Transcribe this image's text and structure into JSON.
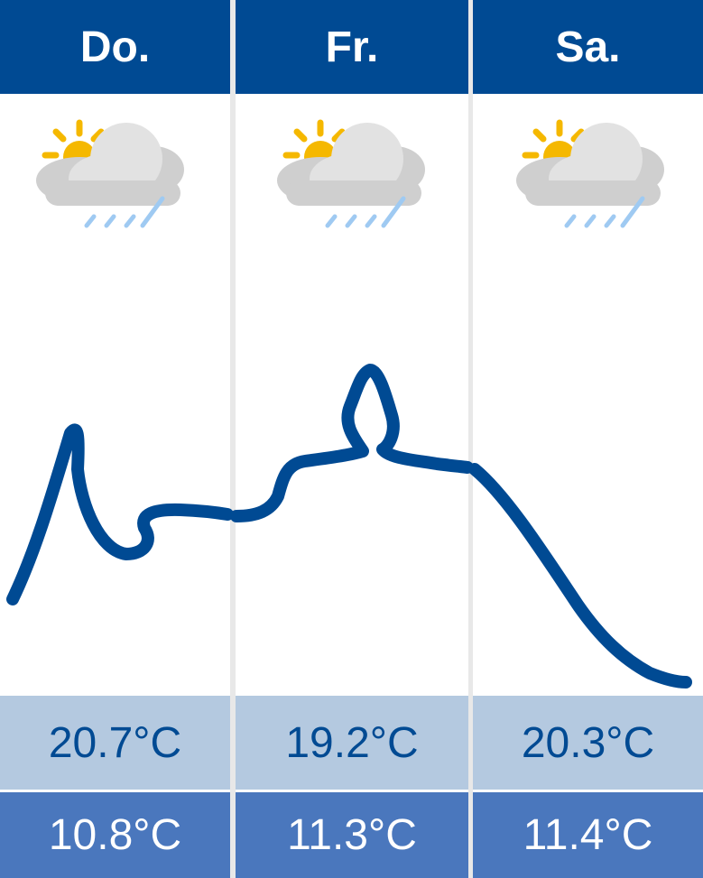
{
  "days": [
    {
      "label": "Do.",
      "max": "20.7°C",
      "min": "10.8°C",
      "icon": "sun-cloud-rain-icon"
    },
    {
      "label": "Fr.",
      "max": "19.2°C",
      "min": "11.3°C",
      "icon": "sun-cloud-rain-icon"
    },
    {
      "label": "Sa.",
      "max": "20.3°C",
      "min": "11.4°C",
      "icon": "sun-cloud-rain-icon"
    }
  ],
  "colors": {
    "header_bg": "#004a93",
    "max_bg": "#b4c9e0",
    "min_bg": "#4a77bd",
    "curve": "#004a93",
    "sun": "#f5b800",
    "cloud": "#d9d9d9",
    "rain": "#9fcaf2"
  }
}
